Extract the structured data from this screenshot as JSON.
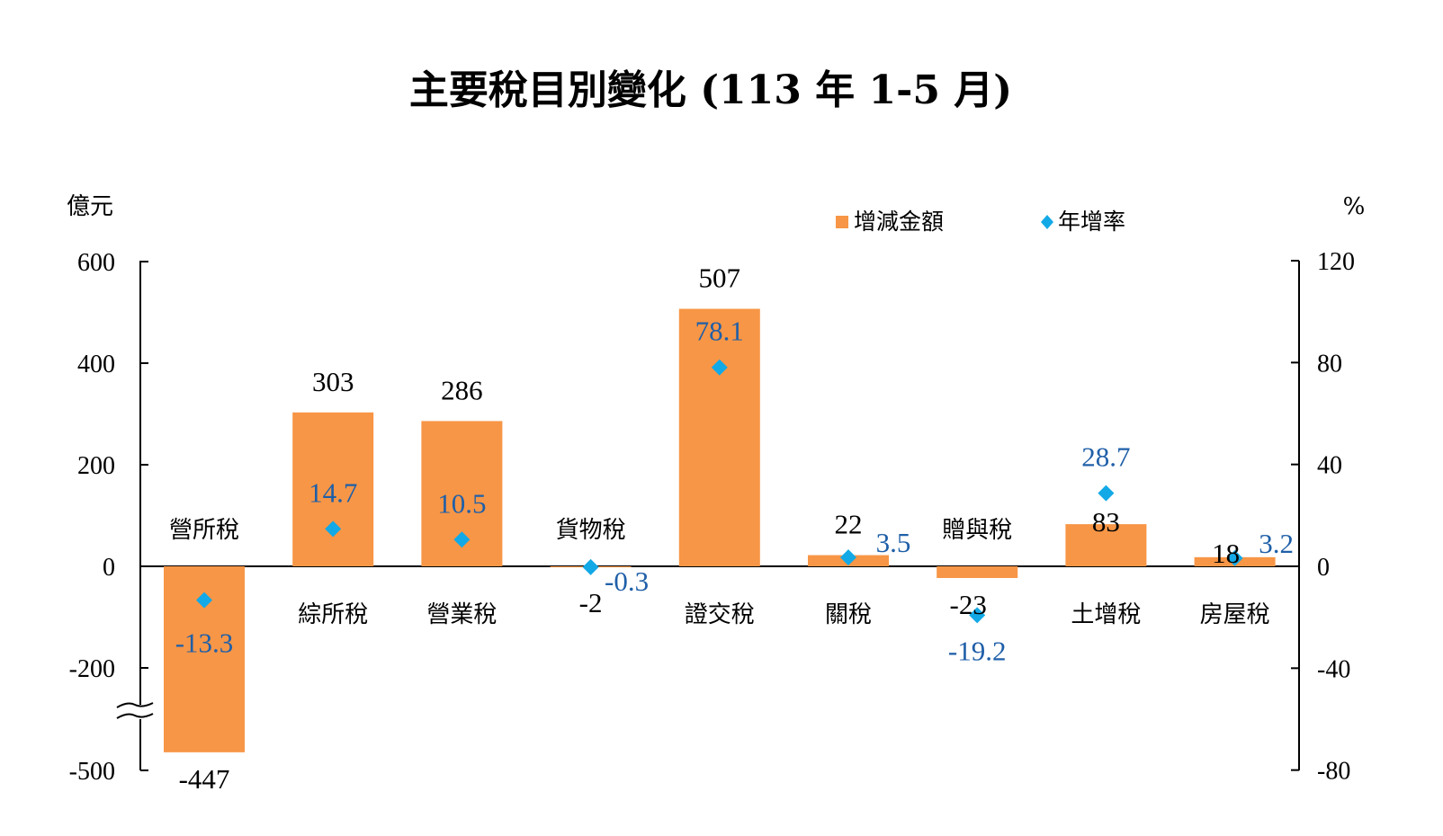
{
  "colors": {
    "bar": "#F79646",
    "marker": "#13A9E6",
    "rate_label": "#1F5FA8",
    "axis": "#000000"
  },
  "chart_data": {
    "type": "bar",
    "title": "主要稅目別變化 (113 年 1-5 月)",
    "y_left_unit": "億元",
    "y_right_unit": "%",
    "y_left_ticks": [
      "600",
      "400",
      "200",
      "0",
      "-200",
      "-500"
    ],
    "y_right_ticks": [
      "120",
      "80",
      "40",
      "0",
      "-40",
      "-80"
    ],
    "y_left_axis_break": [
      -300,
      -400
    ],
    "ylim_right": [
      -80,
      120
    ],
    "legend": [
      "增減金額",
      "年增率"
    ],
    "legend_position": "top-right",
    "categories": [
      "營所稅",
      "綜所稅",
      "營業稅",
      "貨物稅",
      "證交稅",
      "關稅",
      "贈與稅",
      "土增稅",
      "房屋稅"
    ],
    "series": [
      {
        "name": "增減金額",
        "type": "bar",
        "axis": "left",
        "values": [
          -447,
          303,
          286,
          -2,
          507,
          22,
          -23,
          83,
          18
        ],
        "labels": [
          "-447",
          "303",
          "286",
          "-2",
          "507",
          "22",
          "-23",
          "83",
          "18"
        ]
      },
      {
        "name": "年增率",
        "type": "scatter",
        "axis": "right",
        "values": [
          -13.3,
          14.7,
          10.5,
          -0.3,
          78.1,
          3.5,
          -19.2,
          28.7,
          3.2
        ],
        "labels": [
          "-13.3",
          "14.7",
          "10.5",
          "-0.3",
          "78.1",
          "3.5",
          "-19.2",
          "28.7",
          "3.2"
        ]
      }
    ]
  }
}
